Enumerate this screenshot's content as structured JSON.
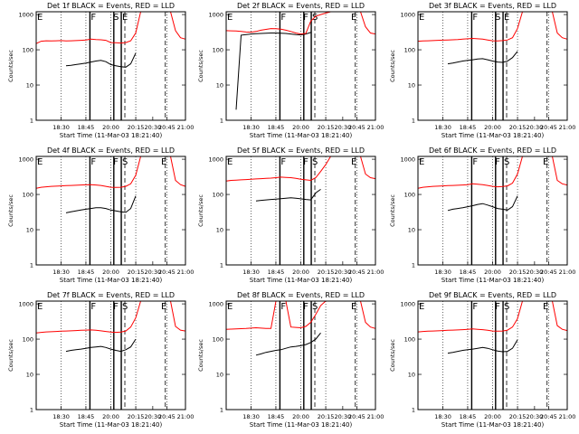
{
  "chart_data": [
    {
      "type": "line",
      "title": "Det 1f BLACK = Events, RED = LLD",
      "xlabel": "Start Time (11-Mar-03 18:21:40)",
      "ylabel": "Counts/sec",
      "xticks": [
        "18:30",
        "18:45",
        "20:00",
        "20:15",
        "20:30",
        "20:45",
        "21:00"
      ],
      "yticks": [
        "1",
        "10",
        "100",
        "1000"
      ],
      "ylim": [
        1,
        1200
      ],
      "log_y": true,
      "markers": [
        "E",
        "F",
        "S",
        "E"
      ],
      "series": [
        {
          "color": "#000000",
          "values": [
            null,
            null,
            null,
            null,
            null,
            null,
            35,
            36,
            38,
            40,
            42,
            45,
            48,
            50,
            46,
            38,
            35,
            33,
            32,
            40,
            80,
            null,
            null,
            null,
            null,
            null,
            null,
            null,
            null,
            null,
            null
          ]
        },
        {
          "color": "#ff0000",
          "values": [
            150,
            175,
            180,
            178,
            180,
            182,
            178,
            180,
            182,
            185,
            190,
            200,
            195,
            192,
            185,
            160,
            158,
            155,
            160,
            180,
            300,
            1200,
            1200,
            1200,
            1200,
            1200,
            1200,
            1200,
            350,
            220,
            200
          ]
        }
      ]
    },
    {
      "type": "line",
      "title": "Det 2f BLACK = Events, RED = LLD",
      "xlabel": "Start Time (11-Mar-03 18:21:40)",
      "ylabel": "Counts/sec",
      "xticks": [
        "18:30",
        "18:45",
        "20:00",
        "20:15",
        "20:30",
        "20:45",
        "21:00"
      ],
      "yticks": [
        "1",
        "10",
        "100",
        "1000"
      ],
      "ylim": [
        1,
        1200
      ],
      "log_y": true,
      "markers": [
        "E",
        "F",
        "F",
        "S",
        "E"
      ],
      "series": [
        {
          "color": "#000000",
          "values": [
            null,
            null,
            2,
            260,
            270,
            280,
            285,
            290,
            295,
            300,
            300,
            295,
            290,
            280,
            270,
            265,
            280,
            310,
            null,
            null,
            null,
            null,
            null,
            null,
            null,
            null,
            null,
            null,
            null,
            null,
            null
          ]
        },
        {
          "color": "#ff0000",
          "values": [
            350,
            345,
            340,
            330,
            320,
            315,
            330,
            360,
            380,
            400,
            395,
            385,
            360,
            330,
            300,
            280,
            290,
            650,
            900,
            1000,
            1100,
            1200,
            1200,
            1200,
            1200,
            1200,
            1200,
            1200,
            450,
            300,
            280
          ]
        }
      ]
    },
    {
      "type": "line",
      "title": "Det 3f BLACK = Events, RED = LLD",
      "xlabel": "Start Time (11-Mar-03 18:21:40)",
      "ylabel": "Counts/sec",
      "xticks": [
        "18:30",
        "18:45",
        "20:00",
        "20:15",
        "20:30",
        "20:45",
        "21:00"
      ],
      "yticks": [
        "1",
        "10",
        "100",
        "1000"
      ],
      "ylim": [
        1,
        1200
      ],
      "log_y": true,
      "markers": [
        "E",
        "F",
        "S",
        "E"
      ],
      "series": [
        {
          "color": "#000000",
          "values": [
            null,
            null,
            null,
            null,
            null,
            null,
            40,
            42,
            45,
            48,
            50,
            52,
            55,
            56,
            52,
            48,
            45,
            44,
            48,
            60,
            90,
            null,
            null,
            null,
            null,
            null,
            null,
            null,
            null,
            null,
            null
          ]
        },
        {
          "color": "#ff0000",
          "values": [
            175,
            178,
            180,
            182,
            185,
            188,
            190,
            192,
            195,
            200,
            205,
            210,
            205,
            200,
            190,
            180,
            178,
            182,
            190,
            220,
            400,
            1200,
            1200,
            1200,
            1200,
            1200,
            1200,
            1200,
            300,
            220,
            200
          ]
        }
      ]
    },
    {
      "type": "line",
      "title": "Det 4f BLACK = Events, RED = LLD",
      "xlabel": "Start Time (11-Mar-03 18:21:40)",
      "ylabel": "Counts/sec",
      "xticks": [
        "18:30",
        "18:45",
        "20:00",
        "20:15",
        "20:30",
        "20:45",
        "21:00"
      ],
      "yticks": [
        "1",
        "10",
        "100",
        "1000"
      ],
      "ylim": [
        1,
        1200
      ],
      "log_y": true,
      "markers": [
        "E",
        "F",
        "F",
        "S",
        "E"
      ],
      "series": [
        {
          "color": "#000000",
          "values": [
            null,
            null,
            null,
            null,
            null,
            null,
            30,
            32,
            34,
            36,
            38,
            40,
            42,
            42,
            40,
            36,
            34,
            32,
            31,
            40,
            90,
            null,
            null,
            null,
            null,
            null,
            null,
            null,
            null,
            null,
            null
          ]
        },
        {
          "color": "#ff0000",
          "values": [
            150,
            160,
            165,
            170,
            172,
            175,
            178,
            180,
            182,
            185,
            188,
            190,
            186,
            180,
            170,
            160,
            158,
            160,
            170,
            200,
            350,
            1200,
            1200,
            1200,
            1200,
            1200,
            1200,
            1200,
            250,
            190,
            170
          ]
        }
      ]
    },
    {
      "type": "line",
      "title": "Det 5f BLACK = Events, RED = LLD",
      "xlabel": "Start Time (11-Mar-03 18:21:40)",
      "ylabel": "Counts/sec",
      "xticks": [
        "18:30",
        "18:45",
        "20:00",
        "20:15",
        "20:30",
        "20:45",
        "21:00"
      ],
      "yticks": [
        "1",
        "10",
        "100",
        "1000"
      ],
      "ylim": [
        1,
        1200
      ],
      "log_y": true,
      "markers": [
        "E",
        "F",
        "F",
        "S",
        "E"
      ],
      "series": [
        {
          "color": "#000000",
          "values": [
            null,
            null,
            null,
            null,
            null,
            null,
            65,
            68,
            70,
            72,
            74,
            76,
            78,
            80,
            78,
            75,
            72,
            70,
            110,
            140,
            null,
            null,
            null,
            null,
            null,
            null,
            null,
            null,
            null,
            null,
            null
          ]
        },
        {
          "color": "#ff0000",
          "values": [
            240,
            250,
            255,
            260,
            265,
            270,
            275,
            280,
            285,
            290,
            300,
            310,
            305,
            300,
            285,
            270,
            260,
            250,
            300,
            450,
            700,
            1200,
            1200,
            1200,
            1200,
            1200,
            1200,
            1200,
            380,
            300,
            280
          ]
        }
      ]
    },
    {
      "type": "line",
      "title": "Det 6f BLACK = Events, RED = LLD",
      "xlabel": "Start Time (11-Mar-03 18:21:40)",
      "ylabel": "Counts/sec",
      "xticks": [
        "18:30",
        "18:45",
        "20:00",
        "20:15",
        "20:30",
        "20:45",
        "21:00"
      ],
      "yticks": [
        "1",
        "10",
        "100",
        "1000"
      ],
      "ylim": [
        1,
        1200
      ],
      "log_y": true,
      "markers": [
        "E",
        "F",
        "F",
        "S",
        "E"
      ],
      "series": [
        {
          "color": "#000000",
          "values": [
            null,
            null,
            null,
            null,
            null,
            null,
            35,
            38,
            40,
            42,
            45,
            48,
            52,
            55,
            50,
            45,
            40,
            38,
            36,
            45,
            90,
            null,
            null,
            null,
            null,
            null,
            null,
            null,
            null,
            null,
            null
          ]
        },
        {
          "color": "#ff0000",
          "values": [
            150,
            160,
            165,
            170,
            172,
            175,
            178,
            180,
            182,
            185,
            190,
            200,
            195,
            190,
            180,
            170,
            165,
            168,
            175,
            210,
            380,
            1200,
            1200,
            1200,
            1200,
            1200,
            1200,
            1200,
            250,
            200,
            185
          ]
        }
      ]
    },
    {
      "type": "line",
      "title": "Det 7f BLACK = Events, RED = LLD",
      "xlabel": "Start Time (11-Mar-03 18:21:40)",
      "ylabel": "Counts/sec",
      "xticks": [
        "18:30",
        "18:45",
        "20:00",
        "20:15",
        "20:30",
        "20:45",
        "21:00"
      ],
      "yticks": [
        "1",
        "10",
        "100",
        "1000"
      ],
      "ylim": [
        1,
        1200
      ],
      "log_y": true,
      "markers": [
        "E",
        "F",
        "F",
        "S",
        "E"
      ],
      "series": [
        {
          "color": "#000000",
          "values": [
            null,
            null,
            null,
            null,
            null,
            null,
            45,
            48,
            50,
            52,
            55,
            58,
            60,
            62,
            58,
            52,
            48,
            45,
            50,
            60,
            100,
            null,
            null,
            null,
            null,
            null,
            null,
            null,
            null,
            null,
            null
          ]
        },
        {
          "color": "#ff0000",
          "values": [
            150,
            155,
            160,
            162,
            165,
            168,
            170,
            172,
            175,
            178,
            180,
            182,
            178,
            172,
            165,
            158,
            155,
            158,
            170,
            220,
            400,
            1200,
            1200,
            1200,
            1200,
            1200,
            1200,
            1200,
            230,
            180,
            170
          ]
        }
      ]
    },
    {
      "type": "line",
      "title": "Det 8f BLACK = Events, RED = LLD",
      "xlabel": "Start Time (11-Mar-03 18:21:40)",
      "ylabel": "Counts/sec",
      "xticks": [
        "18:30",
        "18:45",
        "20:00",
        "20:15",
        "20:30",
        "20:45",
        "21:00"
      ],
      "yticks": [
        "1",
        "10",
        "100",
        "1000"
      ],
      "ylim": [
        1,
        1200
      ],
      "log_y": true,
      "markers": [
        "E",
        "F",
        "F",
        "S",
        "E"
      ],
      "series": [
        {
          "color": "#000000",
          "values": [
            null,
            null,
            null,
            null,
            null,
            null,
            35,
            38,
            42,
            45,
            48,
            50,
            55,
            60,
            62,
            65,
            70,
            80,
            100,
            150,
            null,
            null,
            null,
            null,
            null,
            null,
            null,
            null,
            null,
            null,
            null
          ]
        },
        {
          "color": "#ff0000",
          "values": [
            190,
            192,
            195,
            198,
            200,
            205,
            210,
            205,
            200,
            200,
            1200,
            1200,
            1200,
            220,
            215,
            210,
            230,
            300,
            500,
            900,
            1200,
            1200,
            1200,
            1200,
            1200,
            1200,
            1200,
            1200,
            300,
            220,
            200
          ]
        }
      ]
    },
    {
      "type": "line",
      "title": "Det 9f BLACK = Events, RED = LLD",
      "xlabel": "Start Time (11-Mar-03 18:21:40)",
      "ylabel": "Counts/sec",
      "xticks": [
        "18:30",
        "18:45",
        "20:00",
        "20:15",
        "20:30",
        "20:45",
        "21:00"
      ],
      "yticks": [
        "1",
        "10",
        "100",
        "1000"
      ],
      "ylim": [
        1,
        1200
      ],
      "log_y": true,
      "markers": [
        "E",
        "F",
        "F",
        "S",
        "E"
      ],
      "series": [
        {
          "color": "#000000",
          "values": [
            null,
            null,
            null,
            null,
            null,
            null,
            40,
            42,
            45,
            48,
            50,
            52,
            55,
            58,
            55,
            50,
            46,
            44,
            45,
            55,
            95,
            null,
            null,
            null,
            null,
            null,
            null,
            null,
            null,
            null,
            null
          ]
        },
        {
          "color": "#ff0000",
          "values": [
            160,
            165,
            168,
            170,
            172,
            175,
            178,
            180,
            182,
            185,
            190,
            195,
            190,
            185,
            178,
            170,
            168,
            170,
            180,
            220,
            380,
            1200,
            1200,
            1200,
            1200,
            1200,
            1200,
            1200,
            240,
            190,
            175
          ]
        }
      ]
    }
  ]
}
